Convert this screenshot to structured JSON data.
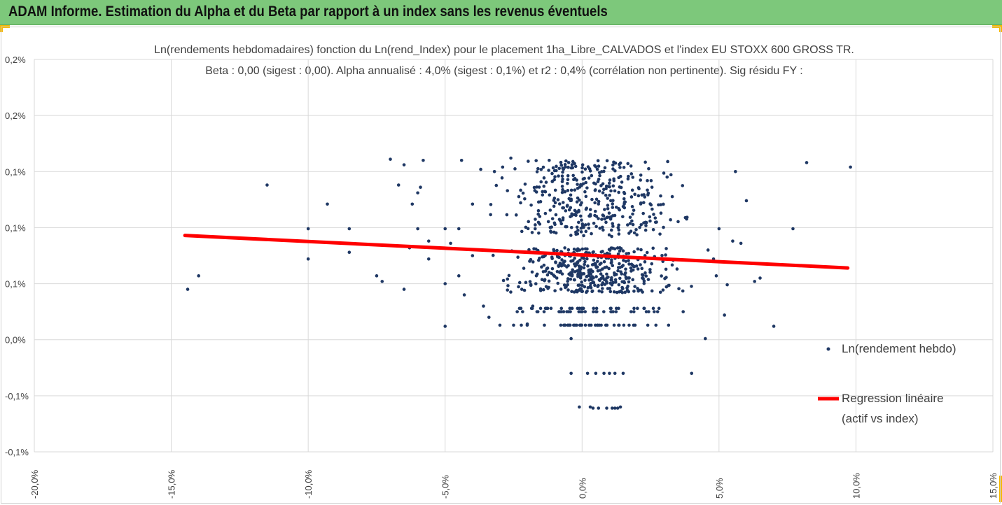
{
  "header": {
    "title": "ADAM Informe. Estimation du Alpha et du Beta par rapport à un index sans les revenus éventuels"
  },
  "colors": {
    "banner": "#7dc87b",
    "points": "#1f3864",
    "regression": "#ff0000",
    "accent": "#f5b800"
  },
  "chart_data": {
    "type": "scatter",
    "title": "Ln(rendements hebdomadaires) fonction du Ln(rend_Index) pour le placement 1ha_Libre_CALVADOS et l'index EU STOXX 600 GROSS TR.",
    "subtitle": "Beta : 0,00 (sigest : 0,00). Alpha annualisé : 4,0% (sigest : 0,1%) et r2 : 0,4% (corrélation non pertinente). Sig résidu FY :",
    "xlabel": "",
    "ylabel": "",
    "xlim": [
      -0.2,
      0.15
    ],
    "ylim": [
      -0.001,
      0.0025
    ],
    "x_ticks": [
      -0.2,
      -0.15,
      -0.1,
      -0.05,
      0,
      0.05,
      0.1,
      0.15
    ],
    "x_tick_labels": [
      "-20,0%",
      "-15,0%",
      "-10,0%",
      "-5,0%",
      "0,0%",
      "5,0%",
      "10,0%",
      "15,0%"
    ],
    "y_ticks": [
      -0.001,
      -0.0005,
      0,
      0.0005,
      0.001,
      0.0015,
      0.002,
      0.0025
    ],
    "y_tick_labels": [
      "-0,1%",
      "-0,1%",
      "0,0%",
      "0,1%",
      "0,1%",
      "0,1%",
      "0,2%",
      "0,2%"
    ],
    "grid": true,
    "legend_position": "right",
    "series": [
      {
        "name": "Ln(rendement hebdo)",
        "kind": "scatter",
        "points": [
          [
            -0.144,
            0.00045
          ],
          [
            -0.14,
            0.00057
          ],
          [
            -0.115,
            0.00138
          ],
          [
            -0.1,
            0.00099
          ],
          [
            -0.1,
            0.00072
          ],
          [
            -0.093,
            0.00121
          ],
          [
            -0.085,
            0.00099
          ],
          [
            -0.085,
            0.00078
          ],
          [
            -0.075,
            0.00057
          ],
          [
            -0.073,
            0.00052
          ],
          [
            -0.07,
            0.00161
          ],
          [
            -0.067,
            0.00138
          ],
          [
            -0.065,
            0.00156
          ],
          [
            -0.065,
            0.00045
          ],
          [
            -0.063,
            0.00082
          ],
          [
            -0.062,
            0.00121
          ],
          [
            -0.06,
            0.00099
          ],
          [
            -0.06,
            0.00131
          ],
          [
            -0.059,
            0.00136
          ],
          [
            -0.058,
            0.0016
          ],
          [
            -0.056,
            0.00088
          ],
          [
            -0.056,
            0.00072
          ],
          [
            -0.05,
            0.0005
          ],
          [
            -0.05,
            0.00099
          ],
          [
            -0.05,
            0.00012
          ],
          [
            -0.048,
            0.00086
          ],
          [
            -0.045,
            0.00057
          ],
          [
            -0.045,
            0.00099
          ],
          [
            -0.044,
            0.0016
          ],
          [
            -0.043,
            0.0004
          ],
          [
            -0.04,
            0.00121
          ],
          [
            -0.04,
            0.00075
          ],
          [
            -0.037,
            0.00152
          ],
          [
            -0.036,
            0.0003
          ],
          [
            -0.034,
            0.0002
          ],
          [
            -0.032,
            0.0015
          ],
          [
            -0.03,
            0.00013
          ],
          [
            -0.029,
            0.00154
          ],
          [
            -0.026,
            0.00162
          ],
          [
            -0.025,
            0.00013
          ],
          [
            -0.022,
            0.00045
          ],
          [
            -0.02,
            0.00014
          ],
          [
            -0.018,
            0.0003
          ],
          [
            -0.016,
            0.00112
          ],
          [
            -0.012,
            0.0016
          ],
          [
            -0.006,
            0.00115
          ],
          [
            -0.004,
            1e-05
          ],
          [
            -0.004,
            -0.0003
          ],
          [
            -0.001,
            -0.0006
          ],
          [
            0.002,
            -0.0003
          ],
          [
            0.003,
            -0.0006
          ],
          [
            0.004,
            -0.00061
          ],
          [
            0.005,
            -0.0003
          ],
          [
            0.006,
            -0.00061
          ],
          [
            0.008,
            -0.0003
          ],
          [
            0.009,
            -0.00061
          ],
          [
            0.01,
            -0.0003
          ],
          [
            0.011,
            -0.00061
          ],
          [
            0.012,
            -0.0003
          ],
          [
            0.012,
            -0.00061
          ],
          [
            0.013,
            -0.00061
          ],
          [
            0.014,
            -0.0006
          ],
          [
            0.015,
            -0.0003
          ],
          [
            0.04,
            -0.0003
          ],
          [
            0.045,
            1e-05
          ],
          [
            0.046,
            0.0008
          ],
          [
            0.048,
            0.00072
          ],
          [
            0.049,
            0.00057
          ],
          [
            0.05,
            0.00099
          ],
          [
            0.052,
            0.00022
          ],
          [
            0.053,
            0.00049
          ],
          [
            0.055,
            0.00088
          ],
          [
            0.056,
            0.0015
          ],
          [
            0.058,
            0.00086
          ],
          [
            0.06,
            0.00124
          ],
          [
            0.063,
            0.00052
          ],
          [
            0.065,
            0.00055
          ],
          [
            0.07,
            0.00012
          ],
          [
            0.077,
            0.00099
          ],
          [
            0.082,
            0.00158
          ],
          [
            0.098,
            0.00154
          ]
        ],
        "cloud": {
          "x_center": 0.003,
          "x_spread": 0.02,
          "upper_band_y": [
            0.00092,
            0.0016
          ],
          "core_band_y": [
            0.00042,
            0.00082
          ],
          "rows_y": [
            0.00025,
            0.00028,
            0.00013
          ],
          "extra_points": 900
        }
      },
      {
        "name": "Regression linéaire (actif vs index)",
        "kind": "line",
        "points": [
          [
            -0.145,
            0.00093
          ],
          [
            0.097,
            0.00064
          ]
        ]
      }
    ]
  },
  "legend": {
    "items": [
      {
        "label": "Ln(rendement hebdo)"
      },
      {
        "label": "Regression linéaire",
        "label2": "(actif vs index)"
      }
    ]
  }
}
